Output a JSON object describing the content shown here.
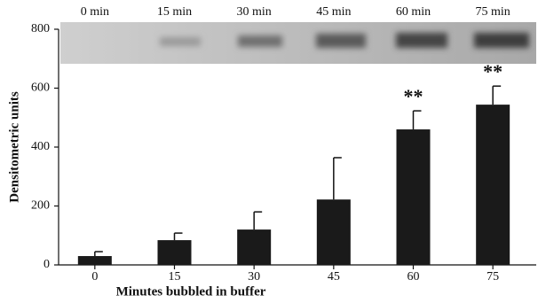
{
  "chart_data": {
    "type": "bar",
    "x_label": "Minutes bubbled in buffer",
    "y_label": "Densitometric units",
    "lane_labels": [
      "0 min",
      "15 min",
      "30 min",
      "45 min",
      "60 min",
      "75 min"
    ],
    "categories": [
      "0",
      "15",
      "30",
      "45",
      "60",
      "75"
    ],
    "values": [
      30,
      84,
      120,
      222,
      460,
      544
    ],
    "errors": [
      15,
      24,
      60,
      142,
      63,
      63
    ],
    "significance": [
      null,
      null,
      null,
      null,
      "**",
      "**"
    ],
    "color": "#1a1a1a",
    "ylim": [
      0,
      800
    ],
    "yticks": [
      0,
      200,
      400,
      600,
      800
    ]
  }
}
